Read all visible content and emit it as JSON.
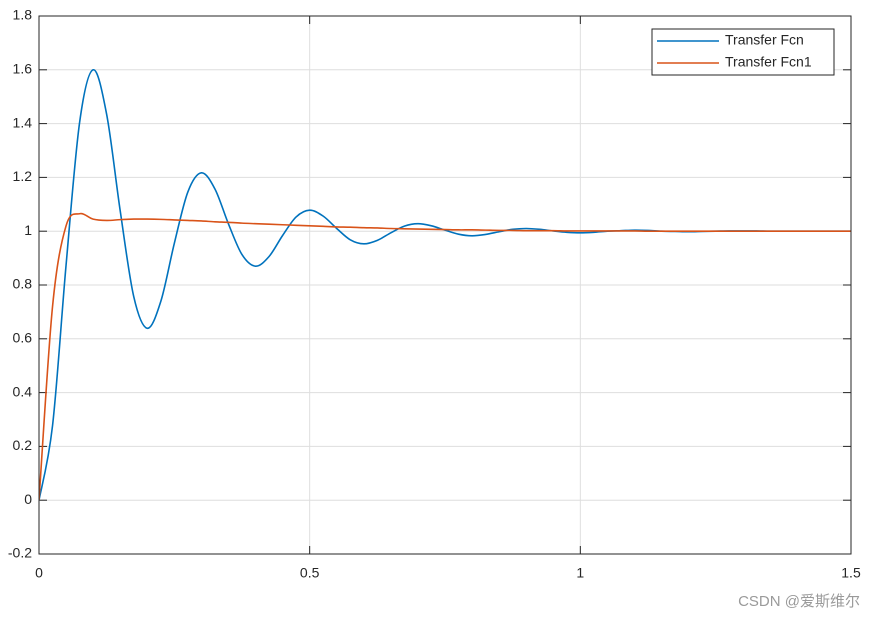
{
  "chart_data": {
    "type": "line",
    "x": [
      0,
      0.025,
      0.05,
      0.075,
      0.1,
      0.125,
      0.15,
      0.175,
      0.2,
      0.225,
      0.25,
      0.275,
      0.3,
      0.325,
      0.35,
      0.375,
      0.4,
      0.425,
      0.45,
      0.475,
      0.5,
      0.525,
      0.55,
      0.575,
      0.6,
      0.625,
      0.65,
      0.675,
      0.7,
      0.725,
      0.75,
      0.775,
      0.8,
      0.825,
      0.85,
      0.875,
      0.9,
      0.925,
      0.95,
      0.975,
      1,
      1.025,
      1.05,
      1.075,
      1.1,
      1.125,
      1.15,
      1.175,
      1.2,
      1.225,
      1.25,
      1.275,
      1.3,
      1.325,
      1.35,
      1.375,
      1.4,
      1.425,
      1.45,
      1.475,
      1.5
    ],
    "series": [
      {
        "name": "Transfer Fcn",
        "color": "#0072bd",
        "values": [
          0,
          0.277,
          0.874,
          1.404,
          1.6,
          1.434,
          1.076,
          0.757,
          0.639,
          0.739,
          0.955,
          1.146,
          1.217,
          1.157,
          1.027,
          0.913,
          0.87,
          0.906,
          0.984,
          1.053,
          1.078,
          1.056,
          1.01,
          0.968,
          0.953,
          0.966,
          0.994,
          1.019,
          1.028,
          1.02,
          1.004,
          0.989,
          0.983,
          0.988,
          0.998,
          1.007,
          1.01,
          1.007,
          1.001,
          0.996,
          0.994,
          0.996,
          1,
          1.002,
          1.004,
          1.003,
          1,
          0.999,
          0.998,
          0.999,
          1,
          1.001,
          1.001,
          1.001,
          1,
          1,
          1,
          1,
          1,
          1,
          1
        ]
      },
      {
        "name": "Transfer Fcn1",
        "color": "#d95319",
        "values": [
          0,
          0.72,
          1.02,
          1.065,
          1.045,
          1.04,
          1.043,
          1.045,
          1.045,
          1.044,
          1.042,
          1.04,
          1.038,
          1.035,
          1.033,
          1.03,
          1.028,
          1.026,
          1.024,
          1.022,
          1.02,
          1.018,
          1.016,
          1.015,
          1.013,
          1.012,
          1.01,
          1.009,
          1.008,
          1.007,
          1.006,
          1.005,
          1.005,
          1.004,
          1.003,
          1.003,
          1.002,
          1.002,
          1.002,
          1.001,
          1.001,
          1.001,
          1.001,
          1.001,
          1.001,
          1,
          1,
          1,
          1,
          1,
          1,
          1,
          1,
          1,
          1,
          1,
          1,
          1,
          1,
          1,
          1
        ]
      }
    ],
    "xlim": [
      0,
      1.5
    ],
    "xticks": [
      0,
      0.5,
      1,
      1.5
    ],
    "ylim": [
      -0.2,
      1.8
    ],
    "yticks": [
      -0.2,
      0,
      0.2,
      0.4,
      0.6,
      0.8,
      1,
      1.2,
      1.4,
      1.6,
      1.8
    ],
    "grid": true,
    "legend": "upper right"
  },
  "watermark": "CSDN @爱斯维尔"
}
